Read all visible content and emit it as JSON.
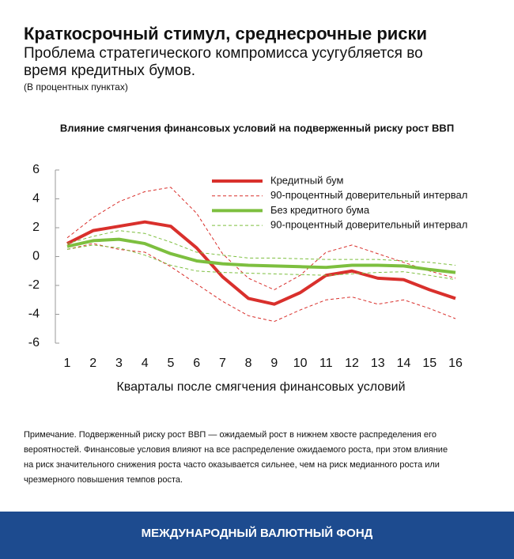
{
  "chart_data": {
    "type": "line",
    "title": "Краткосрочный стимул, среднесрочные риски",
    "subtitle": [
      "Проблема стратегического компромисса усугубляется во",
      "время кредитных бумов."
    ],
    "unit_note": "(В процентных пунктах)",
    "chart_title": "Влияние смягчения финансовых условий на подверженный риску рост ВВП",
    "x_label": "Кварталы после смягчения финансовых условий",
    "categories": [
      "1",
      "2",
      "3",
      "4",
      "5",
      "6",
      "7",
      "8",
      "9",
      "10",
      "11",
      "12",
      "13",
      "14",
      "15",
      "16"
    ],
    "ylim": [
      -6,
      6
    ],
    "yticks": [
      6,
      4,
      2,
      0,
      -2,
      -4,
      -6
    ],
    "legend": "top-right",
    "series": [
      {
        "name": "Кредитный бум",
        "color": "#d9302c",
        "dashed": false,
        "values": [
          0.9,
          1.8,
          2.1,
          2.4,
          2.1,
          0.6,
          -1.4,
          -2.9,
          -3.3,
          -2.5,
          -1.3,
          -1.0,
          -1.5,
          -1.6,
          -2.3,
          -2.9
        ]
      },
      {
        "name": "90-процентный доверительный интервал",
        "color": "#d9302c",
        "dashed": true,
        "upper": [
          1.3,
          2.7,
          3.8,
          4.5,
          4.8,
          3.0,
          0.2,
          -1.5,
          -2.3,
          -1.3,
          0.3,
          0.8,
          0.2,
          -0.4,
          -1.0,
          -1.5
        ],
        "lower": [
          0.5,
          0.9,
          0.5,
          0.3,
          -0.7,
          -1.9,
          -3.1,
          -4.1,
          -4.5,
          -3.7,
          -3.0,
          -2.8,
          -3.3,
          -3.0,
          -3.6,
          -4.3
        ]
      },
      {
        "name": "Без кредитного бума",
        "color": "#7dbf3f",
        "dashed": false,
        "values": [
          0.7,
          1.1,
          1.2,
          0.9,
          0.2,
          -0.3,
          -0.5,
          -0.6,
          -0.65,
          -0.7,
          -0.75,
          -0.6,
          -0.6,
          -0.65,
          -0.9,
          -1.1
        ]
      },
      {
        "name": "90-процентный доверительный интервал",
        "color": "#7dbf3f",
        "dashed": true,
        "upper": [
          0.9,
          1.4,
          1.8,
          1.6,
          1.0,
          0.3,
          0.1,
          -0.1,
          -0.1,
          -0.15,
          -0.2,
          -0.2,
          -0.2,
          -0.3,
          -0.4,
          -0.6
        ],
        "lower": [
          0.5,
          0.8,
          0.6,
          0.1,
          -0.6,
          -1.0,
          -1.1,
          -1.15,
          -1.2,
          -1.25,
          -1.3,
          -1.2,
          -1.1,
          -1.05,
          -1.3,
          -1.6
        ]
      }
    ],
    "note": [
      "Примечание. Подверженный риску рост ВВП — ожидаемый рост в нижнем хвосте распределения его",
      "вероятностей. Финансовые условия влияют на все распределение ожидаемого роста, при этом влияние",
      "на риск значительного снижения роста часто оказывается сильнее, чем на риск медианного роста или",
      "чрезмерного повышения темпов роста."
    ],
    "footer": "МЕЖДУНАРОДНЫЙ ВАЛЮТНЫЙ ФОНД"
  }
}
